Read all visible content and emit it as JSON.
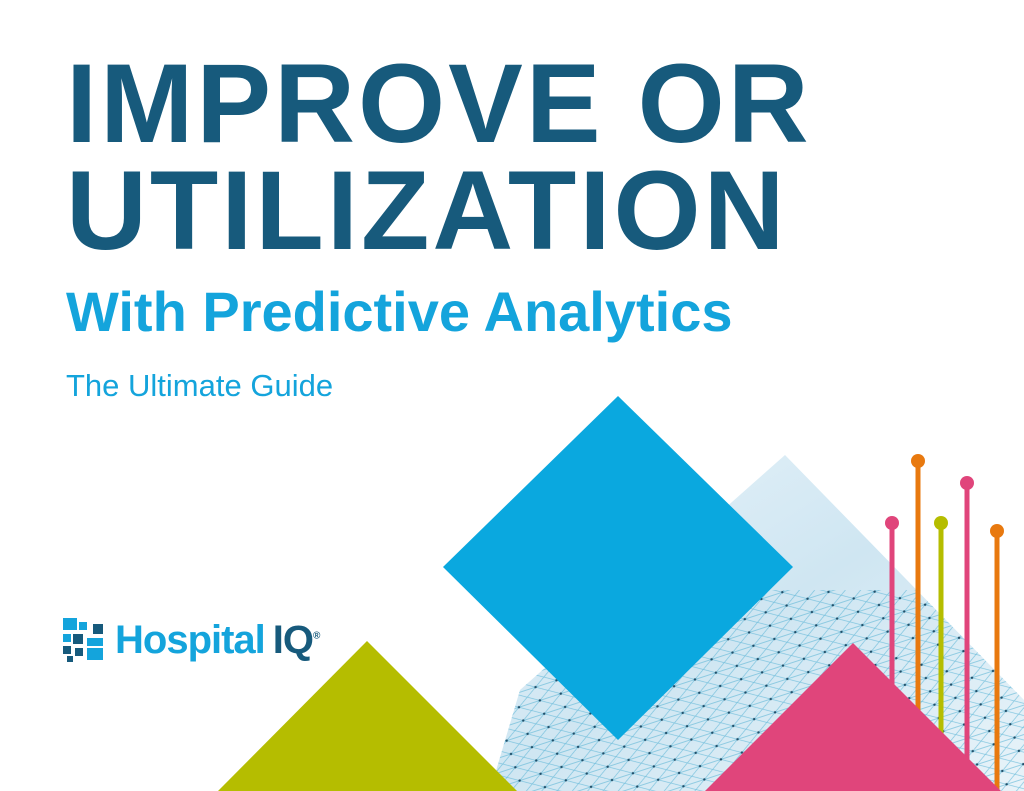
{
  "cover": {
    "title_line1": "IMPROVE OR",
    "title_line2": "UTILIZATION",
    "subtitle": "With Predictive Analytics",
    "tagline": "The Ultimate Guide"
  },
  "logo": {
    "name": "Hospital",
    "suffix": "IQ",
    "mark": "®"
  },
  "colors": {
    "title": "#175a7c",
    "accent": "#14a4dc",
    "diamond": "#0aa8df",
    "green": "#b5bd00",
    "pink": "#e0457b",
    "orange": "#e8790f"
  }
}
